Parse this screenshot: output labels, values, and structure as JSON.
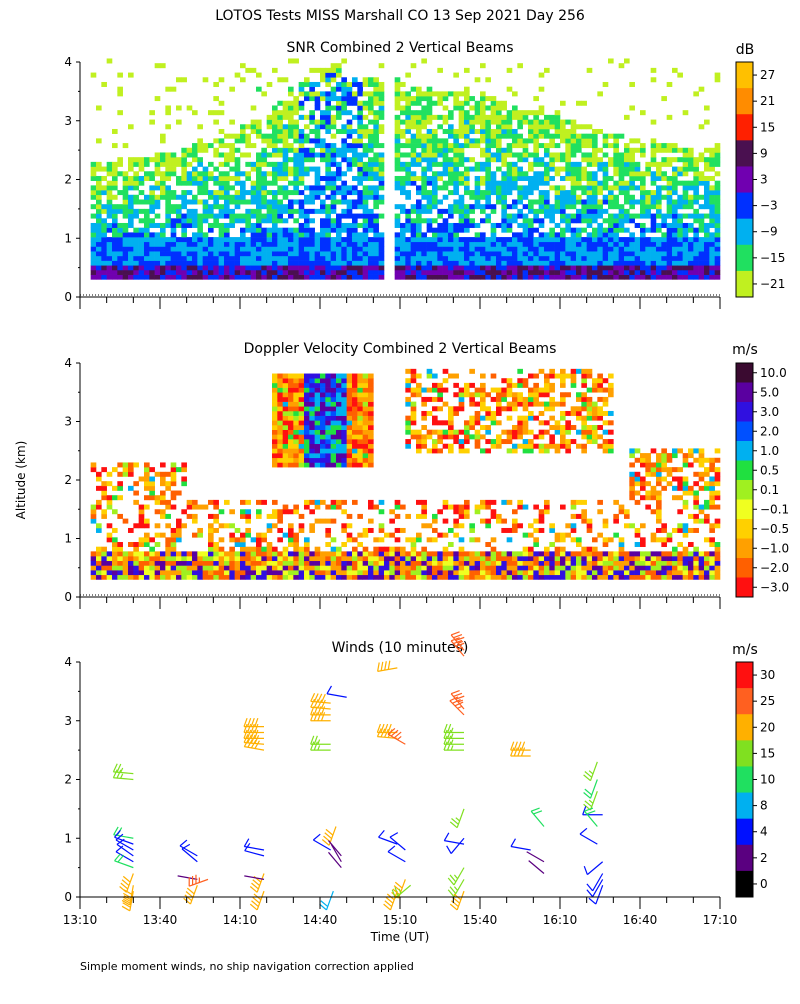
{
  "page_title": "LOTOS Tests MISS Marshall CO  13 Sep 2021 Day 256",
  "ylabel": "Altitude (km)",
  "xlabel": "Time (UT)",
  "footnote": "Simple moment winds, no ship navigation correction applied",
  "chart_data": [
    {
      "type": "heatmap",
      "title": "SNR Combined 2 Vertical Beams",
      "colorbar_unit": "dB",
      "colorbar_labels": [
        "27",
        "21",
        "15",
        "9",
        "3",
        "−3",
        "−9",
        "−15",
        "−21"
      ],
      "colorbar_colors": [
        "#ffc000",
        "#ff8c00",
        "#ff2000",
        "#4a1050",
        "#7000b0",
        "#0030ff",
        "#00b0f0",
        "#20e060",
        "#c0f020"
      ],
      "x_tick_labels": [],
      "y_tick_labels": [
        "0",
        "1",
        "2",
        "3",
        "4"
      ],
      "x_range_minutes_utc": [
        790,
        1030
      ],
      "y_range_km": [
        0,
        4
      ],
      "profile_band_km": [
        {
          "t": "13:10",
          "low_km": 0.3,
          "top_km": 2.2
        },
        {
          "t": "13:40",
          "low_km": 0.3,
          "top_km": 2.4
        },
        {
          "t": "14:10",
          "low_km": 0.3,
          "top_km": 2.8
        },
        {
          "t": "14:40",
          "low_km": 0.3,
          "top_km": 3.9
        },
        {
          "t": "15:10",
          "low_km": 0.3,
          "top_km": 3.6
        },
        {
          "t": "15:40",
          "low_km": 0.3,
          "top_km": 3.4
        },
        {
          "t": "16:10",
          "low_km": 0.3,
          "top_km": 3.0
        },
        {
          "t": "16:40",
          "low_km": 0.3,
          "top_km": 2.6
        },
        {
          "t": "17:10",
          "low_km": 0.3,
          "top_km": 2.5
        }
      ]
    },
    {
      "type": "heatmap",
      "title": "Doppler Velocity Combined 2 Vertical Beams",
      "colorbar_unit": "m/s",
      "colorbar_labels": [
        "10.0",
        "5.0",
        "3.0",
        "2.0",
        "1.0",
        "0.5",
        "0.1",
        "−0.1",
        "−0.5",
        "−1.0",
        "−2.0",
        "−3.0"
      ],
      "colorbar_colors": [
        "#3a0a30",
        "#5a00a0",
        "#3010e0",
        "#0050ff",
        "#00b0f0",
        "#20e040",
        "#a0f020",
        "#f0ff20",
        "#ffd000",
        "#ffa000",
        "#ff6000",
        "#ff1010"
      ],
      "x_tick_labels": [],
      "y_tick_labels": [
        "0",
        "1",
        "2",
        "3",
        "4"
      ],
      "x_range_minutes_utc": [
        790,
        1030
      ],
      "y_range_km": [
        0,
        4
      ]
    },
    {
      "type": "scatter",
      "title": "Winds (10 minutes)",
      "colorbar_unit": "m/s",
      "colorbar_labels": [
        "30",
        "25",
        "20",
        "15",
        "10",
        "8",
        "4",
        "2",
        "0"
      ],
      "colorbar_colors": [
        "#ff1010",
        "#ff6020",
        "#ffb000",
        "#80e020",
        "#20e060",
        "#00b0f0",
        "#0010ff",
        "#5a0080",
        "#000000"
      ],
      "x_tick_labels": [
        "13:10",
        "13:40",
        "14:10",
        "14:40",
        "15:10",
        "15:40",
        "16:10",
        "16:40",
        "17:10"
      ],
      "y_tick_labels": [
        "0",
        "1",
        "2",
        "3",
        "4"
      ],
      "x_range_minutes_utc": [
        790,
        1030
      ],
      "y_range_km": [
        0,
        4
      ],
      "barbs": [
        {
          "t_min": 810,
          "h_km": 2.1,
          "speed": 15,
          "dir": 275
        },
        {
          "t_min": 810,
          "h_km": 2.0,
          "speed": 15,
          "dir": 275
        },
        {
          "t_min": 810,
          "h_km": 1.0,
          "speed": 10,
          "dir": 280
        },
        {
          "t_min": 810,
          "h_km": 0.9,
          "speed": 4,
          "dir": 290
        },
        {
          "t_min": 810,
          "h_km": 0.8,
          "speed": 4,
          "dir": 300
        },
        {
          "t_min": 810,
          "h_km": 0.7,
          "speed": 4,
          "dir": 305
        },
        {
          "t_min": 810,
          "h_km": 0.6,
          "speed": 4,
          "dir": 300
        },
        {
          "t_min": 810,
          "h_km": 0.5,
          "speed": 10,
          "dir": 290
        },
        {
          "t_min": 810,
          "h_km": 0.4,
          "speed": 20,
          "dir": 200
        },
        {
          "t_min": 810,
          "h_km": 0.2,
          "speed": 20,
          "dir": 190
        },
        {
          "t_min": 810,
          "h_km": 0.1,
          "speed": 20,
          "dir": 190
        },
        {
          "t_min": 834,
          "h_km": 0.7,
          "speed": 4,
          "dir": 300
        },
        {
          "t_min": 834,
          "h_km": 0.6,
          "speed": 4,
          "dir": 310
        },
        {
          "t_min": 834,
          "h_km": 0.3,
          "speed": 2,
          "dir": 280
        },
        {
          "t_min": 834,
          "h_km": 0.2,
          "speed": 20,
          "dir": 200
        },
        {
          "t_min": 838,
          "h_km": 0.3,
          "speed": 25,
          "dir": 250
        },
        {
          "t_min": 859,
          "h_km": 2.9,
          "speed": 20,
          "dir": 270
        },
        {
          "t_min": 859,
          "h_km": 2.8,
          "speed": 20,
          "dir": 270
        },
        {
          "t_min": 859,
          "h_km": 2.7,
          "speed": 20,
          "dir": 270
        },
        {
          "t_min": 859,
          "h_km": 2.6,
          "speed": 20,
          "dir": 275
        },
        {
          "t_min": 859,
          "h_km": 2.5,
          "speed": 20,
          "dir": 280
        },
        {
          "t_min": 859,
          "h_km": 0.8,
          "speed": 4,
          "dir": 280
        },
        {
          "t_min": 859,
          "h_km": 0.7,
          "speed": 4,
          "dir": 285
        },
        {
          "t_min": 859,
          "h_km": 0.4,
          "speed": 20,
          "dir": 200
        },
        {
          "t_min": 859,
          "h_km": 0.3,
          "speed": 2,
          "dir": 280
        },
        {
          "t_min": 859,
          "h_km": 0.1,
          "speed": 20,
          "dir": 200
        },
        {
          "t_min": 884,
          "h_km": 3.3,
          "speed": 20,
          "dir": 275
        },
        {
          "t_min": 884,
          "h_km": 3.2,
          "speed": 20,
          "dir": 275
        },
        {
          "t_min": 884,
          "h_km": 3.1,
          "speed": 20,
          "dir": 270
        },
        {
          "t_min": 884,
          "h_km": 3.0,
          "speed": 20,
          "dir": 270
        },
        {
          "t_min": 884,
          "h_km": 2.6,
          "speed": 15,
          "dir": 270
        },
        {
          "t_min": 884,
          "h_km": 2.5,
          "speed": 15,
          "dir": 270
        },
        {
          "t_min": 890,
          "h_km": 3.4,
          "speed": 4,
          "dir": 280
        },
        {
          "t_min": 886,
          "h_km": 1.2,
          "speed": 20,
          "dir": 200
        },
        {
          "t_min": 884,
          "h_km": 0.8,
          "speed": 4,
          "dir": 300
        },
        {
          "t_min": 888,
          "h_km": 0.7,
          "speed": 2,
          "dir": 320
        },
        {
          "t_min": 888,
          "h_km": 0.6,
          "speed": 2,
          "dir": 330
        },
        {
          "t_min": 888,
          "h_km": 0.5,
          "speed": 2,
          "dir": 320
        },
        {
          "t_min": 885,
          "h_km": 0.1,
          "speed": 8,
          "dir": 200
        },
        {
          "t_min": 909,
          "h_km": 3.9,
          "speed": 20,
          "dir": 260
        },
        {
          "t_min": 909,
          "h_km": 2.8,
          "speed": 20,
          "dir": 270
        },
        {
          "t_min": 909,
          "h_km": 2.7,
          "speed": 20,
          "dir": 275
        },
        {
          "t_min": 912,
          "h_km": 2.6,
          "speed": 25,
          "dir": 300
        },
        {
          "t_min": 909,
          "h_km": 0.9,
          "speed": 4,
          "dir": 290
        },
        {
          "t_min": 912,
          "h_km": 0.8,
          "speed": 4,
          "dir": 310
        },
        {
          "t_min": 912,
          "h_km": 0.6,
          "speed": 4,
          "dir": 300
        },
        {
          "t_min": 912,
          "h_km": 0.3,
          "speed": 20,
          "dir": 200
        },
        {
          "t_min": 914,
          "h_km": 0.2,
          "speed": 15,
          "dir": 230
        },
        {
          "t_min": 909,
          "h_km": 0.1,
          "speed": 20,
          "dir": 200
        },
        {
          "t_min": 934,
          "h_km": 4.2,
          "speed": 25,
          "dir": 320
        },
        {
          "t_min": 934,
          "h_km": 4.1,
          "speed": 25,
          "dir": 320
        },
        {
          "t_min": 934,
          "h_km": 3.2,
          "speed": 25,
          "dir": 320
        },
        {
          "t_min": 934,
          "h_km": 3.1,
          "speed": 25,
          "dir": 315
        },
        {
          "t_min": 934,
          "h_km": 2.8,
          "speed": 15,
          "dir": 270
        },
        {
          "t_min": 934,
          "h_km": 2.7,
          "speed": 15,
          "dir": 270
        },
        {
          "t_min": 934,
          "h_km": 2.6,
          "speed": 15,
          "dir": 270
        },
        {
          "t_min": 934,
          "h_km": 2.5,
          "speed": 15,
          "dir": 270
        },
        {
          "t_min": 934,
          "h_km": 1.5,
          "speed": 15,
          "dir": 200
        },
        {
          "t_min": 934,
          "h_km": 1.0,
          "speed": 4,
          "dir": 220
        },
        {
          "t_min": 934,
          "h_km": 0.9,
          "speed": 4,
          "dir": 280
        },
        {
          "t_min": 934,
          "h_km": 0.5,
          "speed": 15,
          "dir": 210
        },
        {
          "t_min": 934,
          "h_km": 0.3,
          "speed": 15,
          "dir": 210
        },
        {
          "t_min": 934,
          "h_km": 0.1,
          "speed": 20,
          "dir": 200
        },
        {
          "t_min": 959,
          "h_km": 2.5,
          "speed": 20,
          "dir": 270
        },
        {
          "t_min": 959,
          "h_km": 2.4,
          "speed": 20,
          "dir": 270
        },
        {
          "t_min": 964,
          "h_km": 1.2,
          "speed": 10,
          "dir": 320
        },
        {
          "t_min": 959,
          "h_km": 0.8,
          "speed": 4,
          "dir": 280
        },
        {
          "t_min": 964,
          "h_km": 0.6,
          "speed": 2,
          "dir": 300
        },
        {
          "t_min": 964,
          "h_km": 0.4,
          "speed": 2,
          "dir": 310
        },
        {
          "t_min": 984,
          "h_km": 2.3,
          "speed": 15,
          "dir": 200
        },
        {
          "t_min": 984,
          "h_km": 2.0,
          "speed": 10,
          "dir": 200
        },
        {
          "t_min": 984,
          "h_km": 1.8,
          "speed": 15,
          "dir": 200
        },
        {
          "t_min": 986,
          "h_km": 1.4,
          "speed": 4,
          "dir": 270
        },
        {
          "t_min": 984,
          "h_km": 1.2,
          "speed": 10,
          "dir": 320
        },
        {
          "t_min": 984,
          "h_km": 0.9,
          "speed": 4,
          "dir": 300
        },
        {
          "t_min": 986,
          "h_km": 0.6,
          "speed": 4,
          "dir": 230
        },
        {
          "t_min": 986,
          "h_km": 0.4,
          "speed": 4,
          "dir": 210
        },
        {
          "t_min": 986,
          "h_km": 0.3,
          "speed": 4,
          "dir": 210
        },
        {
          "t_min": 986,
          "h_km": 0.2,
          "speed": 4,
          "dir": 200
        }
      ]
    }
  ]
}
